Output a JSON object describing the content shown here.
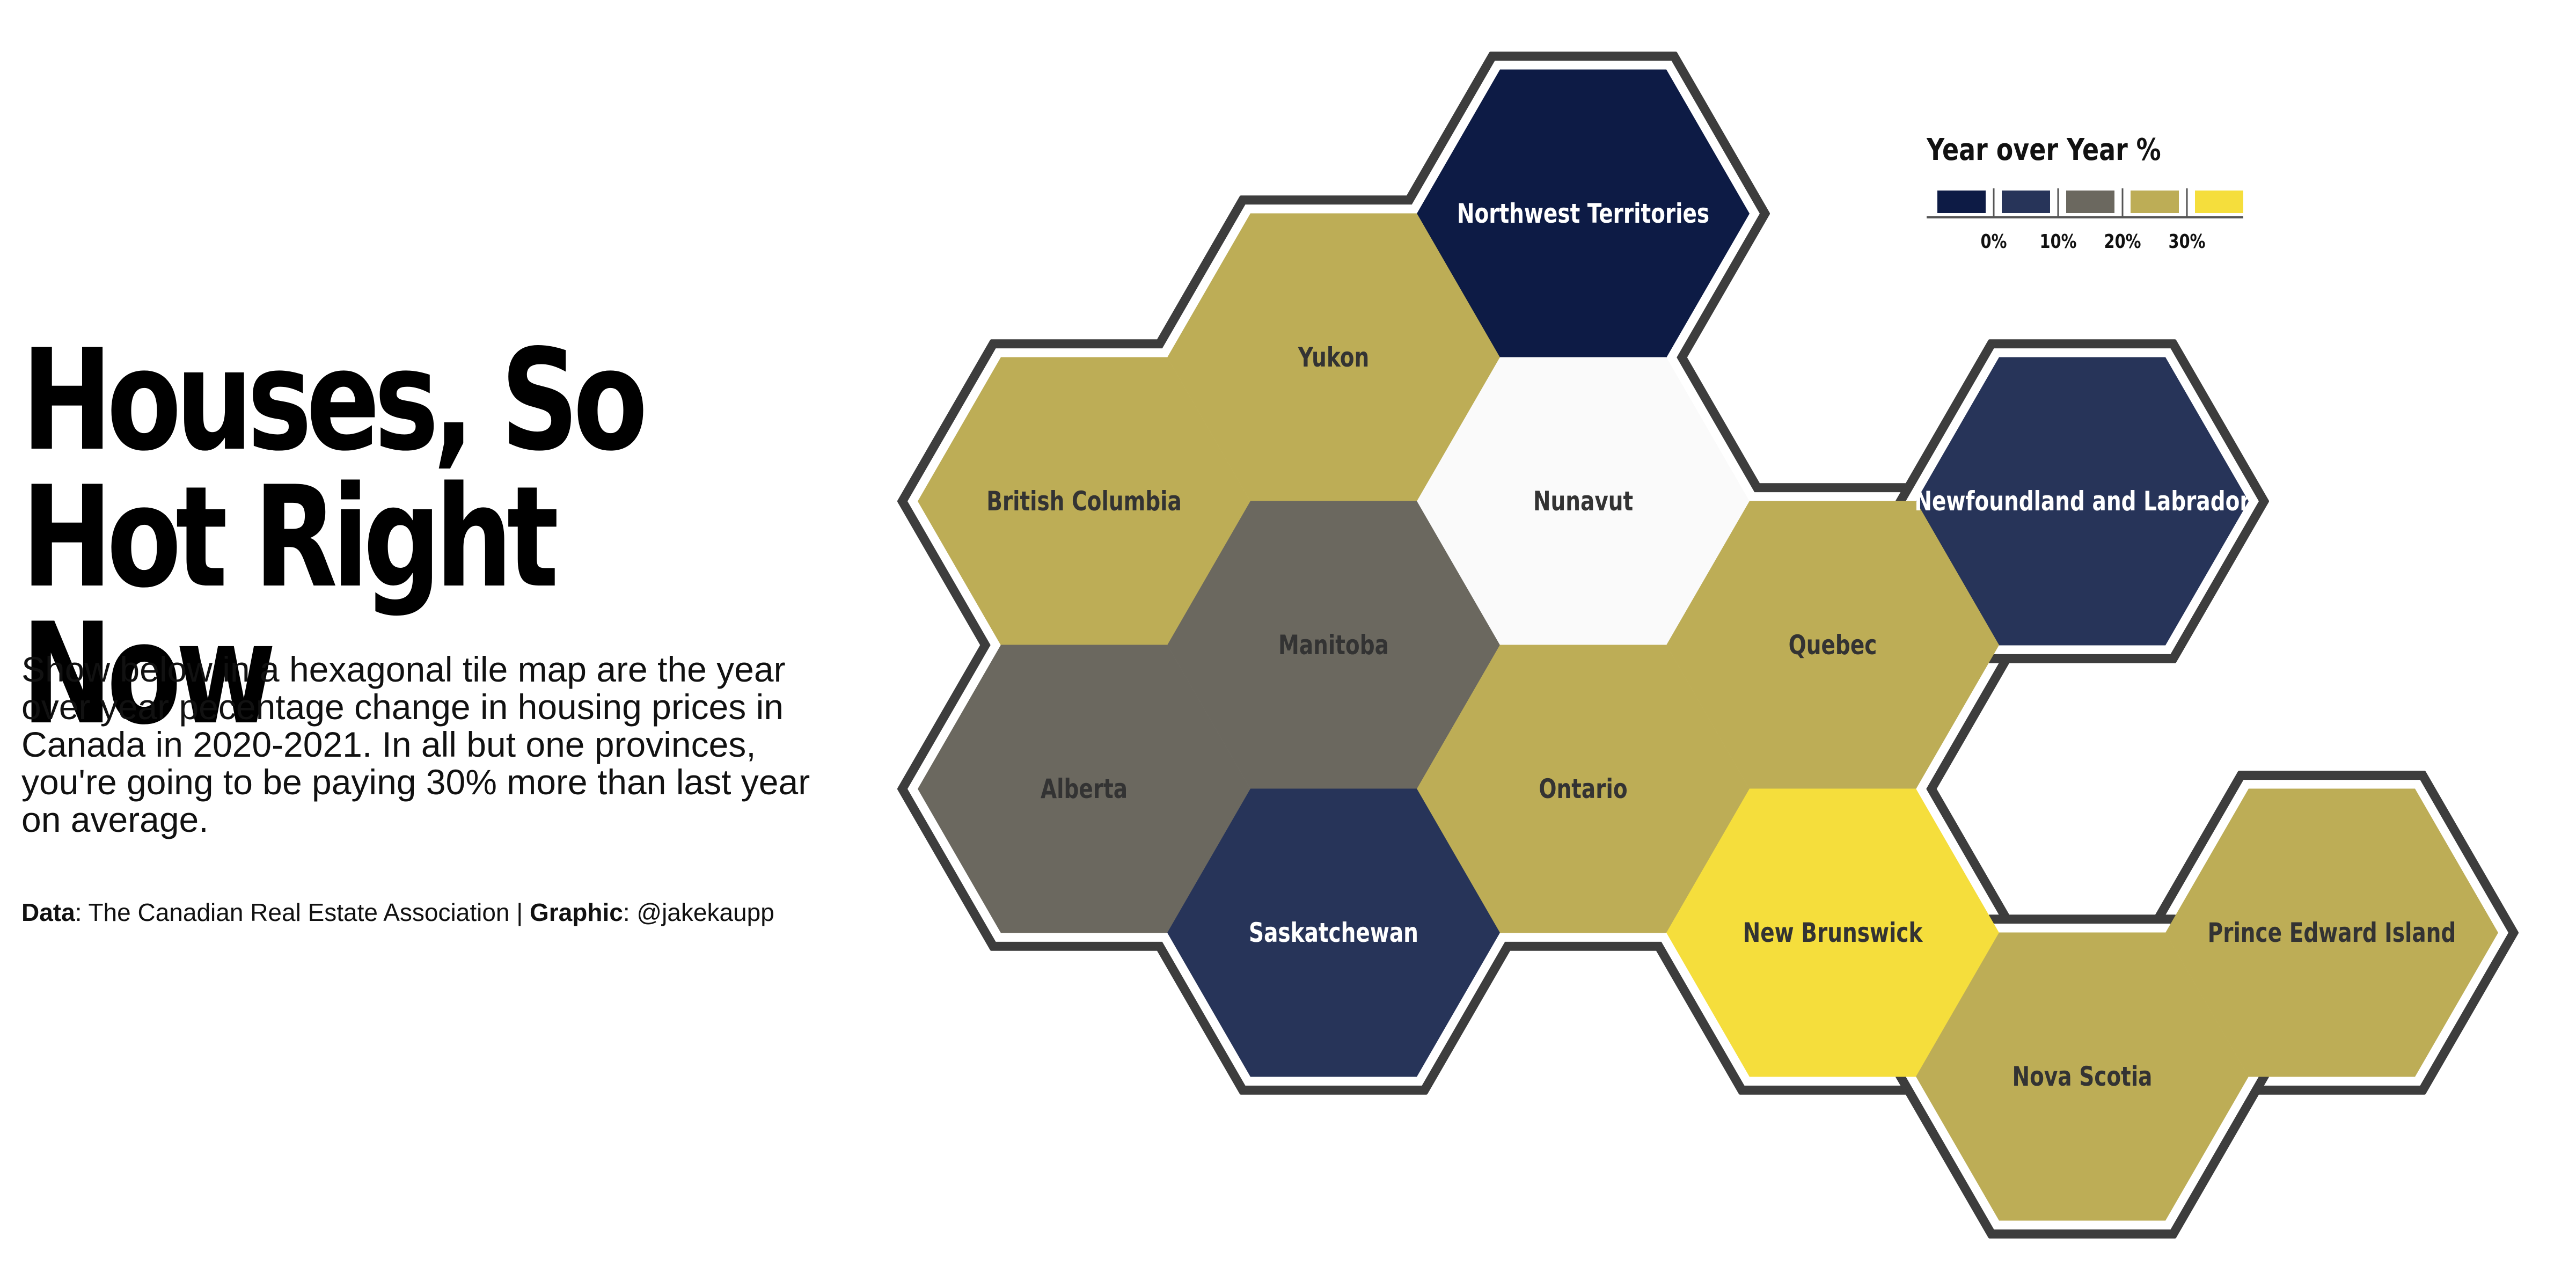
{
  "title": "Houses, So Hot Right Now",
  "subtitle": "Show below in a hexagonal tile map are the year over year pecentage change in housing prices in Canada in 2020-2021. In all but one provinces, you're going to be paying 30% more than last year on average.",
  "credits": {
    "data_label": "Data",
    "data_source": ": The Canadian Real Estate Association | ",
    "graphic_label": "Graphic",
    "graphic_handle": ": @jakekaupp"
  },
  "legend": {
    "title": "Year over Year %",
    "swatches": [
      "#0d1b45",
      "#273459",
      "#6b685f",
      "#bdad56",
      "#f5de3c"
    ],
    "tick_labels": [
      "0%",
      "10%",
      "20%",
      "30%"
    ]
  },
  "colors": {
    "dark_navy": "#0d1b45",
    "navy": "#273459",
    "gray": "#6b685f",
    "olive": "#bdad56",
    "yellow": "#f5de3c",
    "no_data": "#fafafa",
    "outline": "#3d3d3d"
  },
  "map_data": {
    "type": "hex tile map",
    "tiles": [
      {
        "name": "Northwest Territories",
        "col": 2,
        "row": 0,
        "color": "#0d1b45",
        "label_color": "#ffffff",
        "group": "main"
      },
      {
        "name": "Yukon",
        "col": 1,
        "row": 1,
        "color": "#bdad56",
        "label_color": "#333333",
        "group": "main"
      },
      {
        "name": "British Columbia",
        "col": 0,
        "row": 2,
        "color": "#bdad56",
        "label_color": "#333333",
        "group": "main"
      },
      {
        "name": "Nunavut",
        "col": 2,
        "row": 2,
        "color": "#fafafa",
        "label_color": "#333333",
        "group": "main"
      },
      {
        "name": "Newfoundland and Labrador",
        "col": 4,
        "row": 2,
        "color": "#273459",
        "label_color": "#ffffff",
        "group": "nl"
      },
      {
        "name": "Manitoba",
        "col": 1,
        "row": 3,
        "color": "#6b685f",
        "label_color": "#333333",
        "group": "main"
      },
      {
        "name": "Quebec",
        "col": 3,
        "row": 3,
        "color": "#bdad56",
        "label_color": "#333333",
        "group": "main"
      },
      {
        "name": "Alberta",
        "col": 0,
        "row": 4,
        "color": "#6b685f",
        "label_color": "#333333",
        "group": "main"
      },
      {
        "name": "Ontario",
        "col": 2,
        "row": 4,
        "color": "#bdad56",
        "label_color": "#333333",
        "group": "main"
      },
      {
        "name": "Saskatchewan",
        "col": 1,
        "row": 5,
        "color": "#273459",
        "label_color": "#ffffff",
        "group": "main"
      },
      {
        "name": "New Brunswick",
        "col": 3,
        "row": 5,
        "color": "#f5de3c",
        "label_color": "#333333",
        "group": "main"
      },
      {
        "name": "Prince Edward Island",
        "col": 5,
        "row": 5,
        "color": "#bdad56",
        "label_color": "#333333",
        "group": "pei"
      },
      {
        "name": "Nova Scotia",
        "col": 4,
        "row": 6,
        "color": "#bdad56",
        "label_color": "#333333",
        "group": "ns"
      }
    ]
  }
}
